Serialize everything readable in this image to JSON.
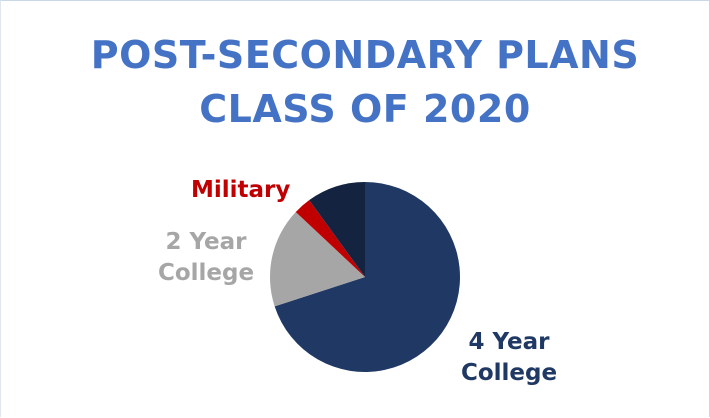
{
  "chart_data": {
    "type": "pie",
    "title": "POST-SECONDARY PLANS",
    "subtitle": "CLASS OF 2020",
    "start_angle_deg": 0,
    "direction": "clockwise",
    "slices": [
      {
        "label": [
          "4 Year",
          "College"
        ],
        "value": 70,
        "color": "#203864",
        "label_color": "#1f3864"
      },
      {
        "label": [
          "2 Year",
          "College"
        ],
        "value": 17,
        "color": "#a6a6a6",
        "label_color": "#a6a6a6"
      },
      {
        "label": [
          "Military"
        ],
        "value": 3,
        "color": "#c00000",
        "label_color": "#c00000"
      },
      {
        "label": [],
        "value": 10,
        "color": "#142440"
      }
    ]
  }
}
